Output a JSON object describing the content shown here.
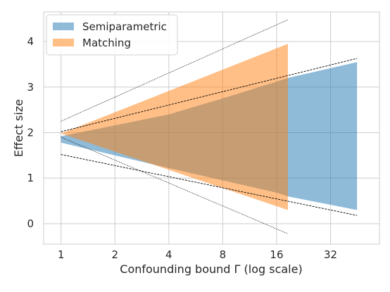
{
  "chart_data": {
    "type": "area",
    "xlabel": "Confounding bound Γ (log scale)",
    "ylabel": "Effect size",
    "x_scale": "log2",
    "xlim": [
      0.8,
      60
    ],
    "ylim": [
      -0.45,
      4.65
    ],
    "x_ticks": [
      1,
      2,
      4,
      8,
      16,
      32
    ],
    "x_tick_labels": [
      "1",
      "2",
      "4",
      "8",
      "16",
      "32"
    ],
    "y_ticks": [
      0,
      1,
      2,
      3,
      4
    ],
    "y_tick_labels": [
      "0",
      "1",
      "2",
      "3",
      "4"
    ],
    "grid": true,
    "legend_position": "top-left",
    "series": [
      {
        "name": "Semiparametric",
        "kind": "band",
        "color": "#1f77b4",
        "alpha": 0.5,
        "x": [
          1,
          4,
          8,
          16,
          18.5,
          45
        ],
        "upper": [
          1.92,
          2.4,
          2.75,
          3.12,
          3.2,
          3.55
        ],
        "lower": [
          1.78,
          1.22,
          0.95,
          0.68,
          0.6,
          0.3
        ]
      },
      {
        "name": "Matching",
        "kind": "band",
        "color": "#ff7f0e",
        "alpha": 0.5,
        "x": [
          1,
          18.5
        ],
        "upper": [
          1.98,
          3.95
        ],
        "lower": [
          1.98,
          0.3
        ]
      }
    ],
    "reference_lines": [
      {
        "style": "dotted",
        "x": [
          1,
          18.5
        ],
        "y": [
          2.25,
          4.48
        ]
      },
      {
        "style": "dotted",
        "x": [
          1,
          18.5
        ],
        "y": [
          1.9,
          -0.22
        ]
      },
      {
        "style": "dashed",
        "x": [
          1,
          45
        ],
        "y": [
          2.02,
          3.63
        ]
      },
      {
        "style": "dashed",
        "x": [
          1,
          45
        ],
        "y": [
          1.52,
          0.18
        ]
      }
    ]
  }
}
